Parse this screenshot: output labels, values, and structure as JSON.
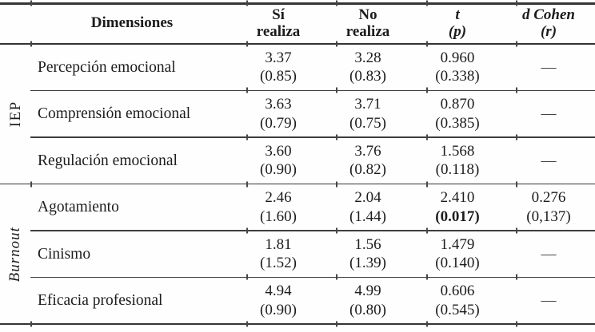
{
  "table": {
    "header": {
      "dimensiones": "Dimensiones",
      "si_line1": "Sí",
      "si_line2": "realiza",
      "no_line1": "No",
      "no_line2": "realiza",
      "t_line1": "t",
      "t_line2": "(p)",
      "d_line1": "d Cohen",
      "d_line2": "(r)"
    },
    "groups": [
      {
        "label": "IEP",
        "rows": [
          {
            "name": "Percepción emocional",
            "si_m": "3.37",
            "si_sd": "(0.85)",
            "no_m": "3.28",
            "no_sd": "(0.83)",
            "t": "0.960",
            "p": "(0.338)",
            "d": "—"
          },
          {
            "name": "Comprensión emocional",
            "si_m": "3.63",
            "si_sd": "(0.79)",
            "no_m": "3.71",
            "no_sd": "(0.75)",
            "t": "0.870",
            "p": "(0.385)",
            "d": "—"
          },
          {
            "name": "Regulación emocional",
            "si_m": "3.60",
            "si_sd": "(0.90)",
            "no_m": "3.76",
            "no_sd": "(0.82)",
            "t": "1.568",
            "p": "(0.118)",
            "d": "—"
          }
        ]
      },
      {
        "label": "Burnout",
        "rows": [
          {
            "name": "Agotamiento",
            "si_m": "2.46",
            "si_sd": "(1.60)",
            "no_m": "2.04",
            "no_sd": "(1.44)",
            "t": "2.410",
            "p": "(0.017)",
            "d_m": "0.276",
            "d_sd": "(0,137)"
          },
          {
            "name": "Cinismo",
            "si_m": "1.81",
            "si_sd": "(1.52)",
            "no_m": "1.56",
            "no_sd": "(1.39)",
            "t": "1.479",
            "p": "(0.140)",
            "d": "—"
          },
          {
            "name": "Eficacia profesional",
            "si_m": "4.94",
            "si_sd": "(0.90)",
            "no_m": "4.99",
            "no_sd": "(0.80)",
            "t": "0.606",
            "p": "(0.545)",
            "d": "—"
          }
        ]
      }
    ]
  }
}
